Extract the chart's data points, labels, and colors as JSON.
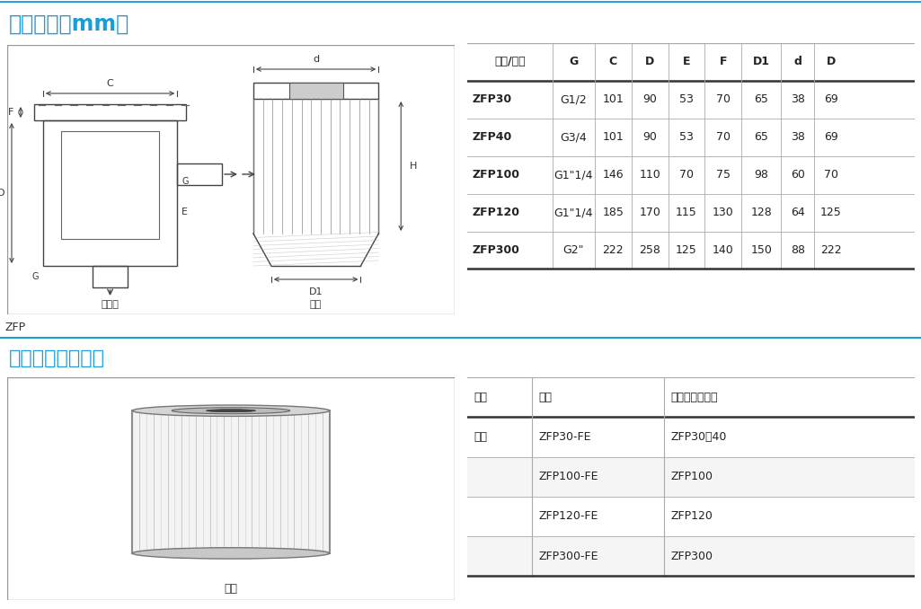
{
  "title1": "尺寸规格（mm）",
  "title2": "维修组件选型规格",
  "zfp_label": "ZFP",
  "section1_color": "#1a9cd9",
  "bg_color": "#ffffff",
  "table1_header": [
    "型号/尺寸",
    "G",
    "C",
    "D",
    "E",
    "F",
    "D1",
    "d",
    "D"
  ],
  "table1_rows": [
    [
      "ZFP30",
      "G1/2",
      "101",
      "90",
      "53",
      "70",
      "65",
      "38",
      "69"
    ],
    [
      "ZFP40",
      "G3/4",
      "101",
      "90",
      "53",
      "70",
      "65",
      "38",
      "69"
    ],
    [
      "ZFP100",
      "G1\"1/4",
      "146",
      "110",
      "70",
      "75",
      "98",
      "60",
      "70"
    ],
    [
      "ZFP120",
      "G1\"1/4",
      "185",
      "170",
      "115",
      "130",
      "128",
      "64",
      "125"
    ],
    [
      "ZFP300",
      "G2\"",
      "222",
      "258",
      "125",
      "140",
      "150",
      "88",
      "222"
    ]
  ],
  "table2_header": [
    "名称",
    "型号",
    "适合过滤器型号"
  ],
  "table2_rows": [
    [
      "滤芯",
      "ZFP30-FE",
      "ZFP30、40"
    ],
    [
      "",
      "ZFP100-FE",
      "ZFP100"
    ],
    [
      "",
      "ZFP120-FE",
      "ZFP120"
    ],
    [
      "",
      "ZFP300-FE",
      "ZFP300"
    ]
  ],
  "diagram_label1": "过滤器",
  "diagram_label2": "滤芯",
  "filter_label": "滤芯",
  "line_color": "#1a9cd9",
  "table_border_color": "#333333",
  "row_alt_color": "#f0f0f0",
  "header_bold": true
}
